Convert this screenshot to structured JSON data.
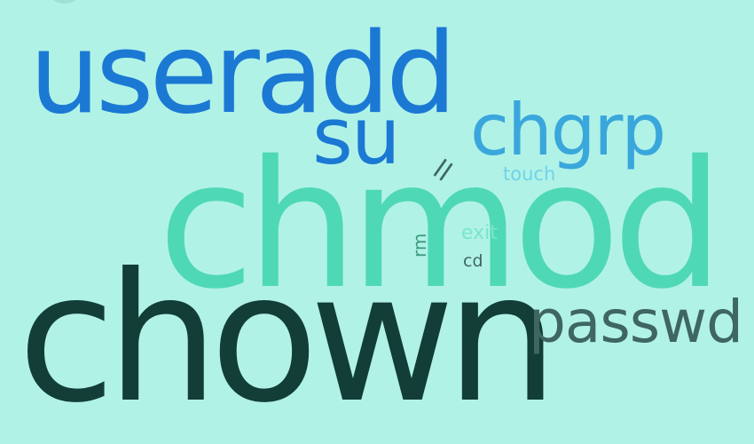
{
  "palette": {
    "background": "#b1f2e7",
    "blue": "#1b79d4",
    "light_blue": "#3aa7dc",
    "mint": "#4fd8b6",
    "dark_teal": "#123e37",
    "slate": "#3f6661",
    "pale_cyan": "#6fd3ea",
    "pale_mint": "#79e6cc",
    "muted_green": "#3c9a7f"
  },
  "words": [
    {
      "id": "useradd",
      "text": "useradd",
      "color": "#1b79d4"
    },
    {
      "id": "su",
      "text": "su",
      "color": "#1b79d4"
    },
    {
      "id": "chgrp",
      "text": "chgrp",
      "color": "#3aa7dc"
    },
    {
      "id": "ll",
      "text": "ll",
      "color": "#3f6661"
    },
    {
      "id": "touch",
      "text": "touch",
      "color": "#6fd3ea"
    },
    {
      "id": "chmod",
      "text": "chmod",
      "color": "#4fd8b6"
    },
    {
      "id": "rm",
      "text": "rm",
      "color": "#3c9a7f"
    },
    {
      "id": "exit",
      "text": "exit",
      "color": "#79e6cc"
    },
    {
      "id": "cd",
      "text": "cd",
      "color": "#3f6661"
    },
    {
      "id": "chown",
      "text": "chown",
      "color": "#123e37"
    },
    {
      "id": "passwd",
      "text": "passwd",
      "color": "#3f6661"
    }
  ]
}
